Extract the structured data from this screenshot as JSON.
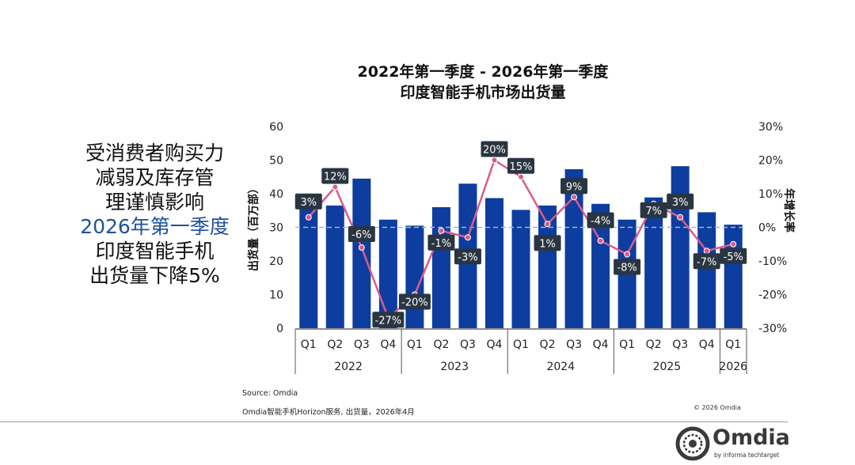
{
  "side_text": {
    "line1": "受消费者购买力",
    "line2": "减弱及库存管",
    "line3": "理谨慎影响",
    "line4": "2026年第一季度",
    "line5": "印度智能手机",
    "line6": "出货量下降5%"
  },
  "chart_data": {
    "type": "bar",
    "title": "2022年第一季度 - 2026年第一季度",
    "subtitle": "印度智能手机市场出货量",
    "ylabel": "出货量（百万部）",
    "y2label": "年增长率",
    "ylim": [
      0,
      60
    ],
    "yticks": [
      "0",
      "10",
      "20",
      "30",
      "40",
      "50",
      "60"
    ],
    "y2lim": [
      -30,
      30
    ],
    "y2ticks": [
      "-30%",
      "-20%",
      "-10%",
      "0%",
      "10%",
      "20%",
      "30%"
    ],
    "categories": [
      "Q1",
      "Q2",
      "Q3",
      "Q4",
      "Q1",
      "Q2",
      "Q3",
      "Q4",
      "Q1",
      "Q2",
      "Q3",
      "Q4",
      "Q1",
      "Q2",
      "Q3",
      "Q4",
      "Q1"
    ],
    "years": [
      {
        "label": "2022",
        "count": 4
      },
      {
        "label": "2023",
        "count": 4
      },
      {
        "label": "2024",
        "count": 4
      },
      {
        "label": "2025",
        "count": 4
      },
      {
        "label": "2026",
        "count": 1
      }
    ],
    "series": [
      {
        "name": "出货量",
        "type": "bar",
        "color": "#0d3d9e",
        "values": [
          35.5,
          36.5,
          44.5,
          32.3,
          30.5,
          36,
          43,
          38.7,
          35.2,
          36.5,
          47.3,
          37,
          32.3,
          38.9,
          48.2,
          34.5,
          30.8
        ]
      },
      {
        "name": "年增长率",
        "type": "line",
        "color": "#d95c8a",
        "values": [
          3,
          12,
          -6,
          -27,
          -20,
          -1,
          -3,
          20,
          15,
          1,
          9,
          -4,
          -8,
          7,
          3,
          -7,
          -5
        ],
        "labels": [
          "3%",
          "12%",
          "-6%",
          "-27%",
          "-20%",
          "-1%",
          "-3%",
          "20%",
          "15%",
          "1%",
          "9%",
          "-4%",
          "-8%",
          "7%",
          "3%",
          "-7%",
          "-5%"
        ]
      }
    ]
  },
  "footer": {
    "source": "Source: Omdia",
    "note": "Omdia智能手机Horizon服务, 出货量，2026年4月",
    "copyright": "© 2026 Omdia"
  },
  "logo": {
    "word": "Omdia",
    "sub": "by informa techtarget"
  },
  "colors": {
    "bar": "#0d3d9e",
    "line": "#d95c8a",
    "label_bg": "#2a3542",
    "zero_line": "#9fb7d6"
  }
}
